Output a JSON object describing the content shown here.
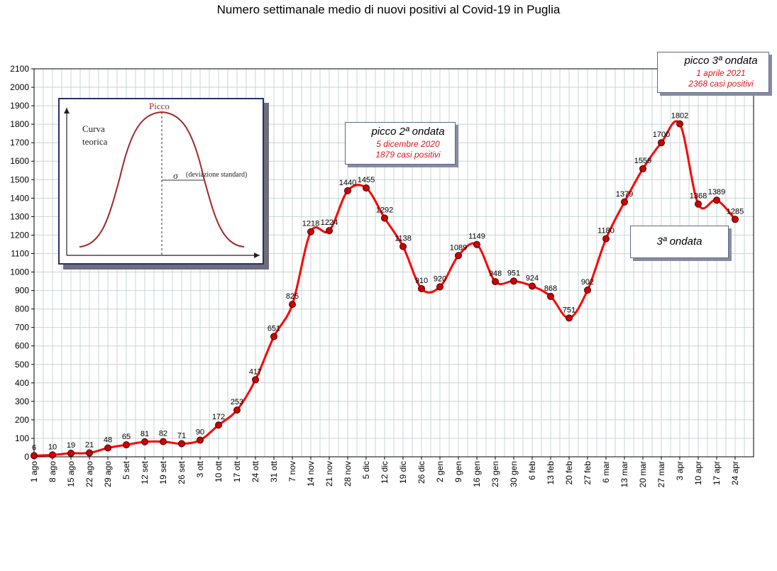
{
  "title": "Numero settimanale medio di nuovi positivi al Covid-19 in Puglia",
  "chart_data": {
    "type": "line",
    "title": "Numero settimanale medio di nuovi positivi al Covid-19 in Puglia",
    "xlabel": "",
    "ylabel": "",
    "ylim": [
      0,
      2100
    ],
    "y_ticks": [
      0,
      100,
      200,
      300,
      400,
      500,
      600,
      700,
      800,
      900,
      1000,
      1100,
      1200,
      1300,
      1400,
      1500,
      1600,
      1700,
      1800,
      1900,
      2000,
      2100
    ],
    "grid": true,
    "line_color": "#ff0000",
    "marker_color": "#cc0000",
    "categories": [
      "1 ago",
      "8 ago",
      "15 ago",
      "22 ago",
      "29 ago",
      "5 set",
      "12 set",
      "19 set",
      "26 set",
      "3 ott",
      "10 ott",
      "17 ott",
      "24 ott",
      "31 ott",
      "7 nov",
      "14 nov",
      "21 nov",
      "28 nov",
      "5 dic",
      "12 dic",
      "19 dic",
      "26 dic",
      "2 gen",
      "9 gen",
      "16 gen",
      "23 gen",
      "30 gen",
      "6 feb",
      "13 feb",
      "20 feb",
      "27 feb",
      "6 mar",
      "13 mar",
      "20 mar",
      "27 mar",
      "3 apr",
      "10 apr",
      "17 apr",
      "24 apr"
    ],
    "values": [
      6,
      10,
      19,
      21,
      48,
      65,
      81,
      82,
      71,
      90,
      172,
      253,
      417,
      651,
      825,
      1218,
      1224,
      1440,
      1455,
      1292,
      1138,
      910,
      920,
      1089,
      1149,
      948,
      951,
      924,
      868,
      751,
      902,
      1180,
      1379,
      1559,
      1700,
      1802,
      1368,
      1389,
      1285
    ]
  },
  "annotations": {
    "peak2": {
      "title": "picco 2ª ondata",
      "date": "5 dicembre 2020",
      "cases": "1879 casi positivi"
    },
    "peak3": {
      "title": "picco 3ª ondata",
      "date": "1 aprile 2021",
      "cases": "2368 casi positivi"
    },
    "wave3": "3ª ondata"
  },
  "inset": {
    "peak_label": "Picco",
    "curve_label_1": "Curva",
    "curve_label_2": "teorica",
    "sigma_symbol": "σ",
    "sigma_label": "(deviazione standard)"
  },
  "colors": {
    "accent": "#e0141c",
    "grid": "#c8d4d4",
    "callout_border": "#5a6a8a"
  }
}
